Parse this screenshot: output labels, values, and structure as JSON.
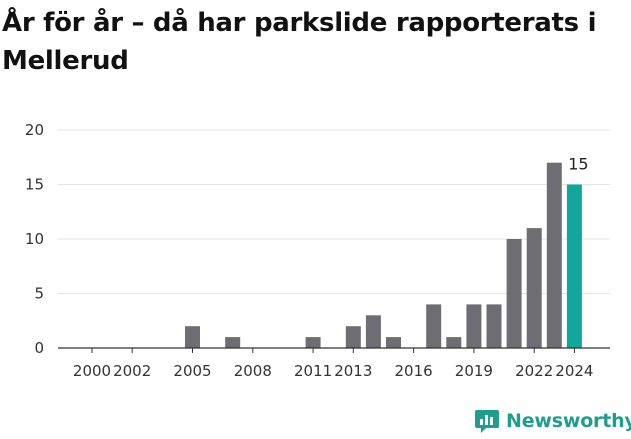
{
  "title": "År för år – då har parkslide rapporterats i Mellerud",
  "brand": {
    "name": "Newsworthy",
    "icon": "newsworthy-logo-icon",
    "color": "#1e9f8e"
  },
  "colors": {
    "bar": "#6e6d73",
    "highlight": "#12a79d",
    "grid": "#e3e3e3",
    "axis": "#333333"
  },
  "chart_data": {
    "type": "bar",
    "title": "År för år – då har parkslide rapporterats i Mellerud",
    "xlabel": "",
    "ylabel": "",
    "categories": [
      "2000",
      "2001",
      "2002",
      "2003",
      "2004",
      "2005",
      "2006",
      "2007",
      "2008",
      "2009",
      "2010",
      "2011",
      "2012",
      "2013",
      "2014",
      "2015",
      "2016",
      "2017",
      "2018",
      "2019",
      "2020",
      "2021",
      "2022",
      "2023",
      "2024"
    ],
    "values": [
      0,
      0,
      0,
      0,
      0,
      2,
      0,
      1,
      0,
      0,
      0,
      1,
      0,
      2,
      3,
      1,
      0,
      4,
      1,
      4,
      4,
      10,
      11,
      17,
      15
    ],
    "x_tick_labels": [
      "2000",
      "2002",
      "2005",
      "2008",
      "2011",
      "2013",
      "2016",
      "2019",
      "2022",
      "2024"
    ],
    "y_ticks": [
      0,
      5,
      10,
      15,
      20
    ],
    "ylim": [
      0,
      20
    ],
    "highlight_category": "2024",
    "annotations": [
      {
        "category": "2024",
        "text": "15"
      }
    ],
    "grid": true,
    "legend": "none"
  }
}
